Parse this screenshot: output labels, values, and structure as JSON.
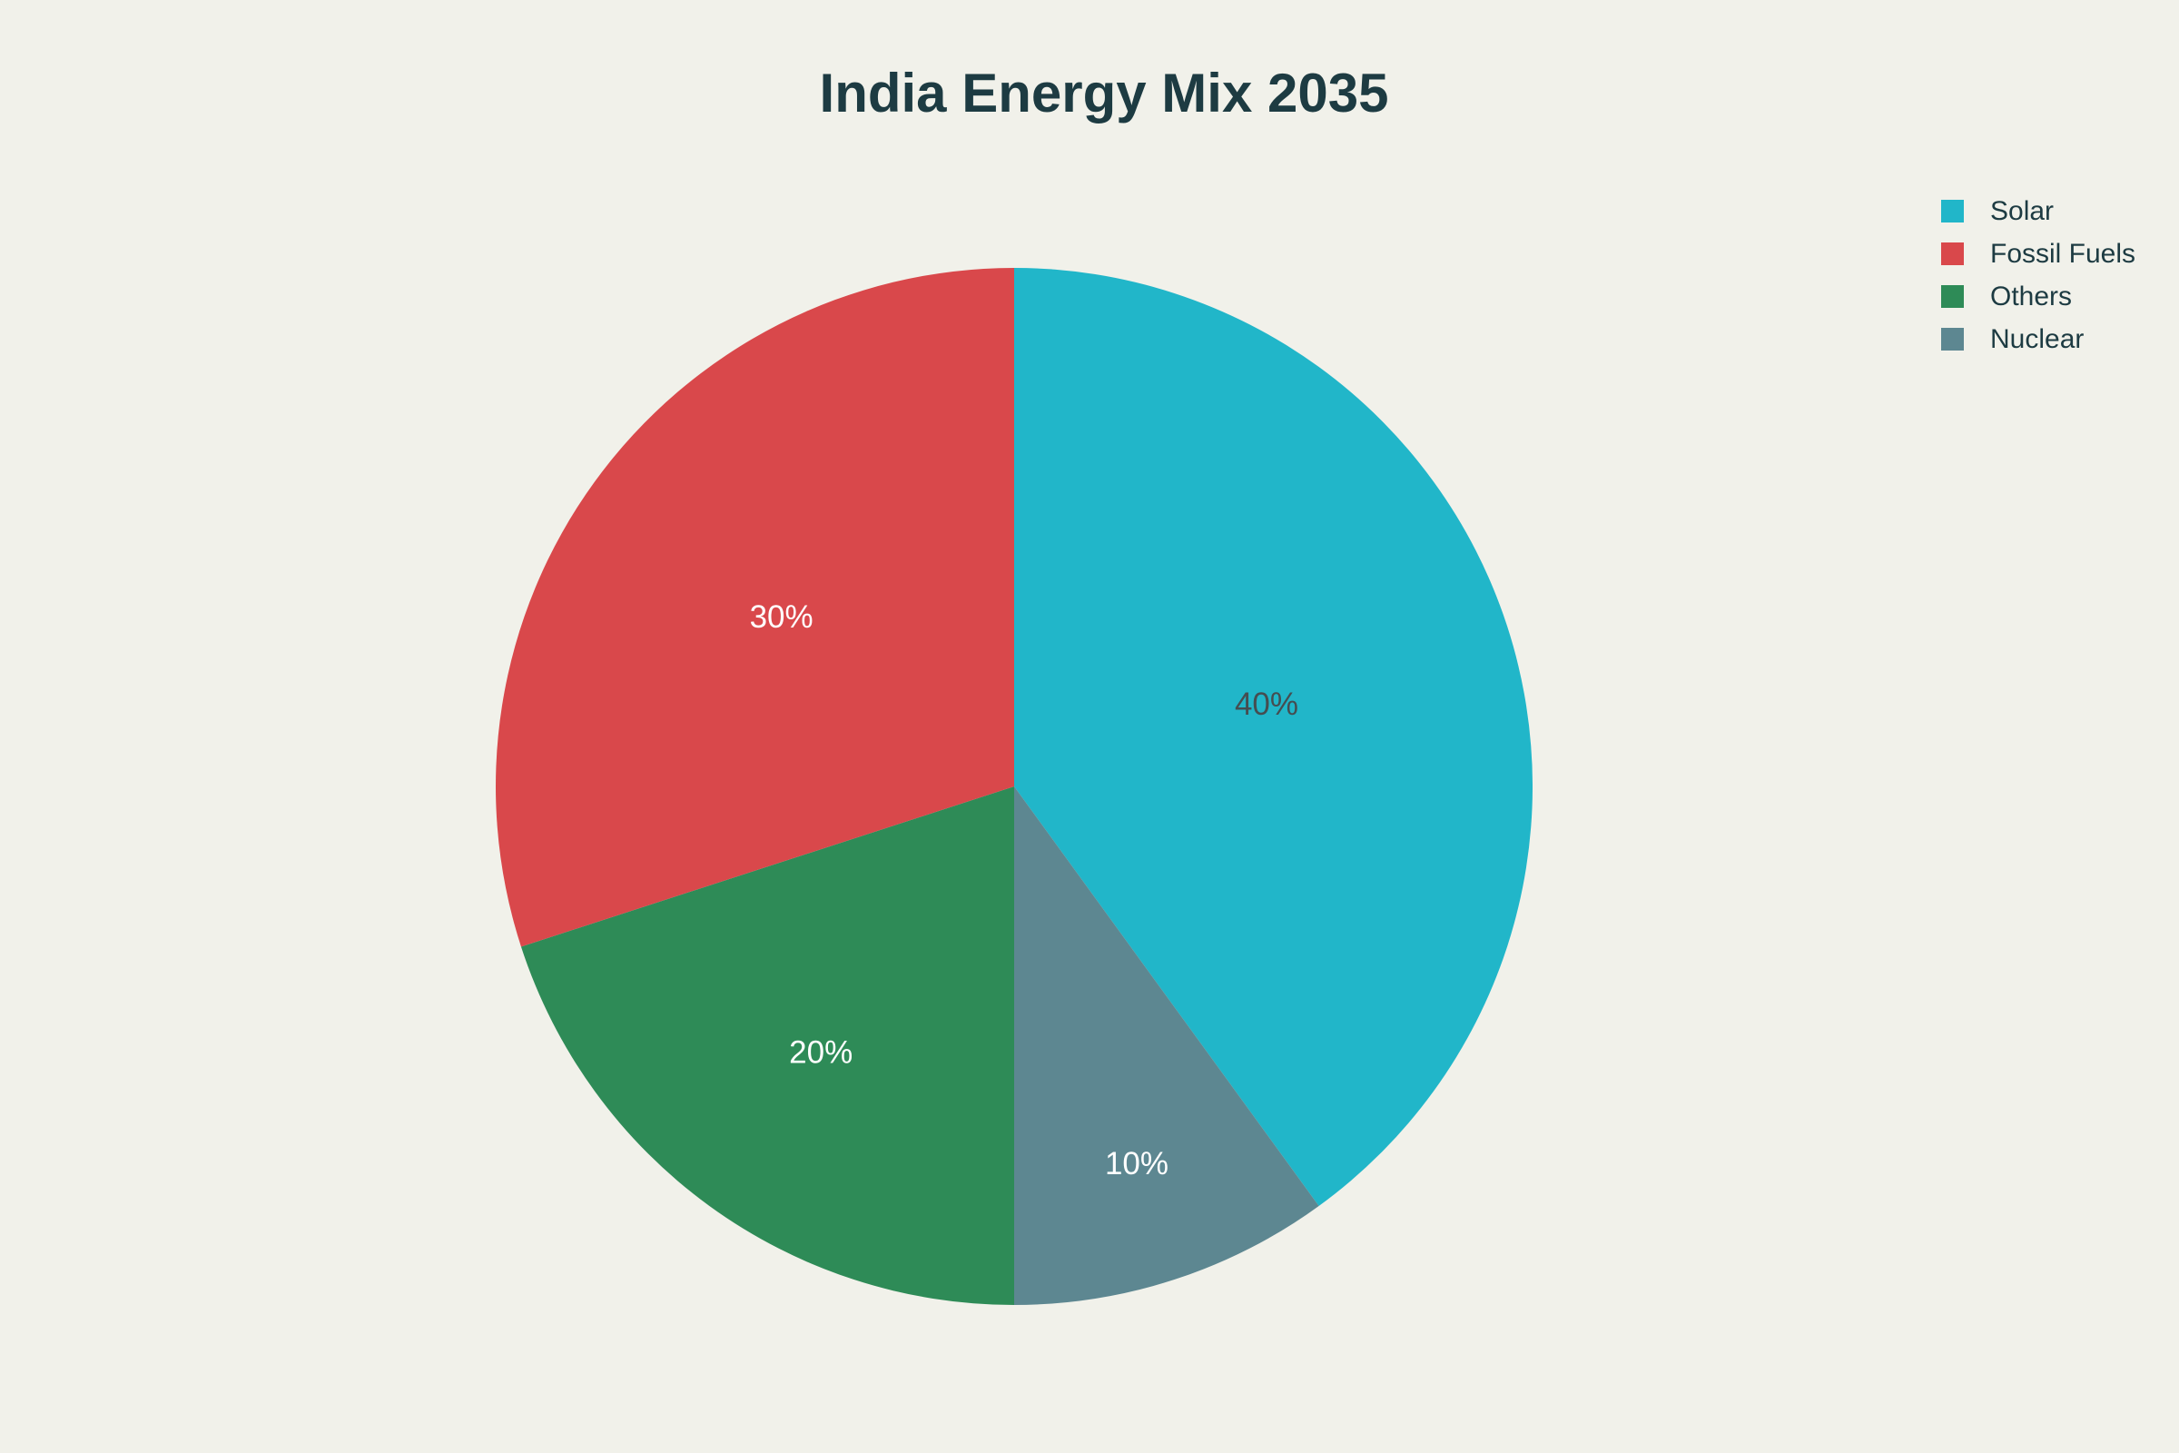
{
  "app": {
    "background_color": "#f1f1ea"
  },
  "header": {
    "title": "India Energy Mix 2035",
    "title_color": "#1d3b42"
  },
  "legend": {
    "position": "top-right",
    "text_color": "#1d3b42",
    "items": [
      {
        "label": "Solar",
        "color": "#21b6c9"
      },
      {
        "label": "Fossil Fuels",
        "color": "#d9484b"
      },
      {
        "label": "Others",
        "color": "#2e8b57"
      },
      {
        "label": "Nuclear",
        "color": "#5d8791"
      }
    ]
  },
  "chart_data": {
    "type": "pie",
    "title": "India Energy Mix 2035",
    "slices": [
      {
        "label": "Solar",
        "value": 40,
        "percent_text": "40%",
        "color": "#21b6c9",
        "text_color": "#454d51"
      },
      {
        "label": "Fossil Fuels",
        "value": 30,
        "percent_text": "30%",
        "color": "#d9484b",
        "text_color": "#ffffff"
      },
      {
        "label": "Others",
        "value": 20,
        "percent_text": "20%",
        "color": "#2e8b57",
        "text_color": "#ffffff"
      },
      {
        "label": "Nuclear",
        "value": 10,
        "percent_text": "10%",
        "color": "#5d8791",
        "text_color": "#ffffff"
      }
    ],
    "layout": {
      "background": "#f1f1ea",
      "legend_position": "top-right",
      "start_angle_deg": 0,
      "direction": "clockwise",
      "clockwise_order": [
        "Solar",
        "Nuclear",
        "Others",
        "Fossil Fuels"
      ],
      "label_radius_fraction": {
        "Solar": 0.512,
        "Nuclear": 0.765,
        "Others": 0.634,
        "Fossil Fuels": 0.555
      }
    }
  }
}
